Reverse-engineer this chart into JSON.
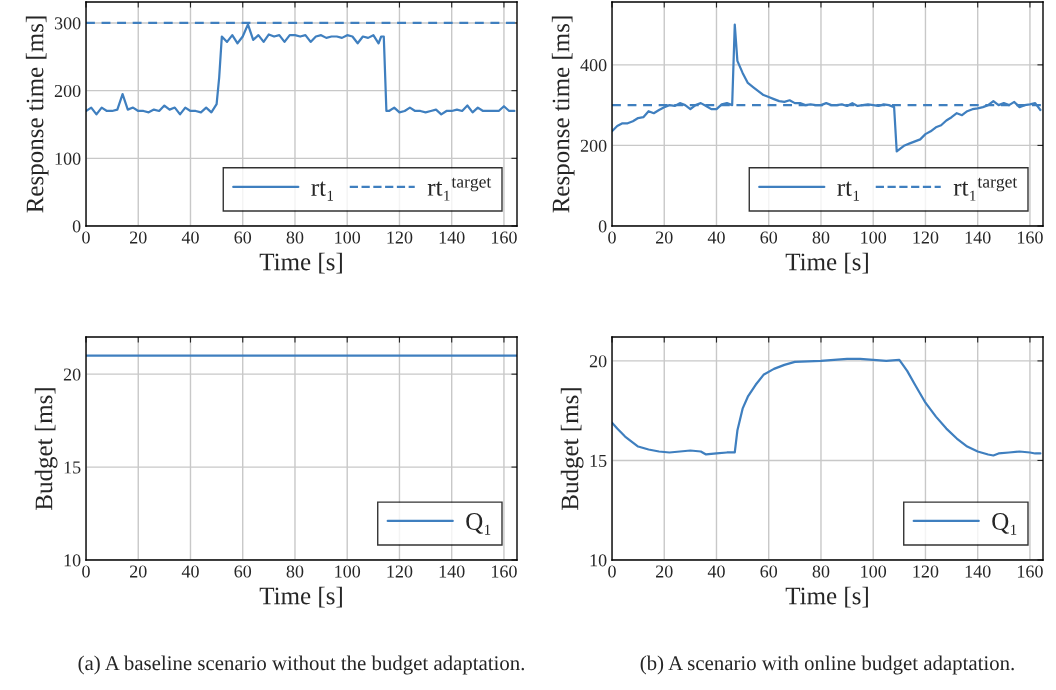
{
  "chart_data": [
    {
      "type": "line",
      "xlabel": "Time [s]",
      "ylabel": "Response time [ms]",
      "xlim": [
        0,
        165
      ],
      "xticks": [
        0,
        20,
        40,
        60,
        80,
        100,
        120,
        140,
        160
      ],
      "ylim": [
        0,
        331
      ],
      "yticks": [
        0,
        100,
        200,
        300
      ],
      "grid": true,
      "legend": "bottom right",
      "line_style": "solid",
      "marker": "none",
      "series": [
        {
          "name": "rt₁",
          "color": "#3f7fbf",
          "x": [
            0,
            2,
            4,
            6,
            8,
            10,
            12,
            14,
            16,
            18,
            20,
            22,
            24,
            26,
            28,
            30,
            32,
            34,
            36,
            38,
            40,
            42,
            44,
            46,
            48,
            50,
            51,
            52,
            54,
            56,
            58,
            60,
            62,
            64,
            66,
            68,
            70,
            72,
            74,
            76,
            78,
            80,
            82,
            84,
            86,
            88,
            90,
            92,
            94,
            96,
            98,
            100,
            102,
            104,
            106,
            108,
            110,
            112,
            113,
            114,
            115,
            116,
            118,
            120,
            122,
            124,
            126,
            128,
            130,
            132,
            134,
            136,
            138,
            140,
            142,
            144,
            146,
            148,
            150,
            152,
            154,
            156,
            158,
            160,
            162,
            164
          ],
          "values": [
            170,
            175,
            165,
            175,
            170,
            170,
            172,
            195,
            172,
            175,
            170,
            170,
            168,
            172,
            170,
            178,
            172,
            175,
            165,
            175,
            170,
            170,
            168,
            175,
            168,
            180,
            220,
            280,
            272,
            282,
            270,
            280,
            298,
            275,
            282,
            272,
            283,
            280,
            282,
            272,
            282,
            282,
            280,
            282,
            272,
            280,
            282,
            278,
            280,
            280,
            278,
            282,
            280,
            270,
            280,
            278,
            282,
            270,
            280,
            280,
            170,
            170,
            175,
            168,
            170,
            175,
            170,
            170,
            168,
            170,
            172,
            165,
            170,
            170,
            172,
            170,
            178,
            168,
            175,
            170,
            170,
            170,
            170,
            177,
            170,
            170
          ]
        }
      ],
      "ref_lines": [
        {
          "axis": "y",
          "value": 300,
          "label": "rt₁$^{target}$",
          "color": "#3f7fbf",
          "line_style": "dashed"
        }
      ]
    },
    {
      "type": "line",
      "xlabel": "Time [s]",
      "ylabel": "Response time [ms]",
      "xlim": [
        0,
        165
      ],
      "xticks": [
        0,
        20,
        40,
        60,
        80,
        100,
        120,
        140,
        160
      ],
      "ylim": [
        0,
        556
      ],
      "yticks": [
        0,
        200,
        400
      ],
      "grid": true,
      "legend": "bottom right",
      "line_style": "solid",
      "marker": "none",
      "series": [
        {
          "name": "rt₁",
          "color": "#3f7fbf",
          "x": [
            0,
            2,
            4,
            6,
            8,
            10,
            12,
            14,
            16,
            18,
            20,
            22,
            24,
            26,
            28,
            30,
            32,
            34,
            36,
            38,
            40,
            42,
            44,
            46,
            47,
            48,
            50,
            52,
            54,
            56,
            58,
            60,
            62,
            64,
            66,
            68,
            70,
            72,
            74,
            76,
            78,
            80,
            82,
            84,
            86,
            88,
            90,
            92,
            94,
            96,
            98,
            100,
            102,
            104,
            106,
            108,
            109,
            110,
            112,
            114,
            116,
            118,
            120,
            122,
            124,
            126,
            128,
            130,
            132,
            134,
            136,
            138,
            140,
            142,
            144,
            146,
            148,
            150,
            152,
            154,
            156,
            158,
            160,
            162,
            164
          ],
          "values": [
            235,
            248,
            255,
            255,
            260,
            268,
            270,
            285,
            280,
            288,
            295,
            300,
            298,
            305,
            300,
            290,
            300,
            305,
            298,
            290,
            290,
            302,
            305,
            300,
            500,
            410,
            380,
            355,
            345,
            335,
            325,
            320,
            315,
            310,
            308,
            312,
            305,
            305,
            300,
            302,
            300,
            300,
            305,
            300,
            300,
            302,
            298,
            305,
            298,
            300,
            302,
            300,
            298,
            302,
            300,
            295,
            185,
            190,
            200,
            205,
            210,
            215,
            228,
            235,
            245,
            250,
            262,
            270,
            280,
            275,
            285,
            290,
            292,
            295,
            300,
            310,
            300,
            305,
            300,
            308,
            295,
            300,
            302,
            305,
            288
          ]
        }
      ],
      "ref_lines": [
        {
          "axis": "y",
          "value": 300,
          "label": "rt₁$^{target}$",
          "color": "#3f7fbf",
          "line_style": "dashed"
        }
      ]
    },
    {
      "type": "line",
      "xlabel": "Time [s]",
      "ylabel": "Budget [ms]",
      "xlim": [
        0,
        165
      ],
      "xticks": [
        0,
        20,
        40,
        60,
        80,
        100,
        120,
        140,
        160
      ],
      "ylim": [
        10,
        22
      ],
      "yticks": [
        10,
        15,
        20
      ],
      "grid": true,
      "legend": "bottom right",
      "line_style": "solid",
      "marker": "none",
      "series": [
        {
          "name": "Q₁",
          "color": "#3f7fbf",
          "x": [
            0,
            165
          ],
          "values": [
            21,
            21
          ]
        }
      ],
      "annotations": [
        "(a) A baseline scenario without the budget adaptation."
      ]
    },
    {
      "type": "line",
      "xlabel": "Time [s]",
      "ylabel": "Budget [ms]",
      "xlim": [
        0,
        165
      ],
      "xticks": [
        0,
        20,
        40,
        60,
        80,
        100,
        120,
        140,
        160
      ],
      "ylim": [
        10,
        21.2
      ],
      "yticks": [
        10,
        15,
        20
      ],
      "grid": true,
      "legend": "bottom right",
      "line_style": "solid",
      "marker": "none",
      "series": [
        {
          "name": "Q₁",
          "color": "#3f7fbf",
          "x": [
            0,
            2,
            5,
            8,
            10,
            14,
            18,
            22,
            26,
            30,
            34,
            36,
            40,
            44,
            47,
            48,
            50,
            52,
            55,
            58,
            62,
            66,
            70,
            75,
            80,
            85,
            90,
            95,
            100,
            105,
            110,
            113,
            116,
            120,
            124,
            128,
            132,
            136,
            140,
            144,
            146,
            148,
            152,
            156,
            160,
            162,
            164
          ],
          "values": [
            16.9,
            16.6,
            16.2,
            15.9,
            15.7,
            15.55,
            15.45,
            15.4,
            15.45,
            15.5,
            15.45,
            15.3,
            15.35,
            15.4,
            15.4,
            16.5,
            17.6,
            18.2,
            18.8,
            19.3,
            19.6,
            19.8,
            19.95,
            19.98,
            20.0,
            20.05,
            20.1,
            20.1,
            20.05,
            20.0,
            20.05,
            19.5,
            18.8,
            17.9,
            17.2,
            16.6,
            16.1,
            15.7,
            15.45,
            15.3,
            15.25,
            15.35,
            15.4,
            15.45,
            15.4,
            15.35,
            15.35
          ]
        }
      ],
      "annotations": [
        "(b) A scenario with online budget adaptation."
      ]
    }
  ]
}
